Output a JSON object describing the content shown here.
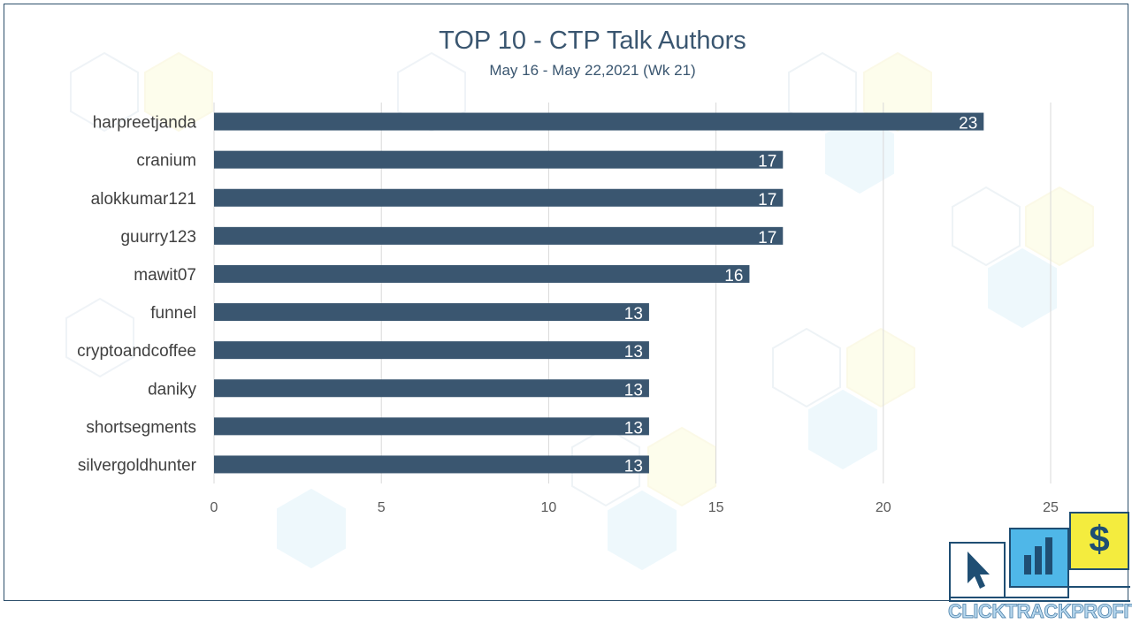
{
  "title": "TOP 10 - CTP Talk Authors",
  "subtitle": "May 16 - May 22,2021 (Wk 21)",
  "chart_data": {
    "type": "bar",
    "orientation": "horizontal",
    "title": "TOP 10 - CTP Talk Authors",
    "subtitle": "May 16 - May 22,2021 (Wk 21)",
    "categories": [
      "harpreetjanda",
      "cranium",
      "alokkumar121",
      "guurry123",
      "mawit07",
      "funnel",
      "cryptoandcoffee",
      "daniky",
      "shortsegments",
      "silvergoldhunter"
    ],
    "values": [
      23,
      17,
      17,
      17,
      16,
      13,
      13,
      13,
      13,
      13
    ],
    "xlim": [
      0,
      25
    ],
    "xticks": [
      0,
      5,
      10,
      15,
      20,
      25
    ],
    "grid": true,
    "legend": "none",
    "data_labels": true,
    "bar_color": "#3a5670",
    "label_color": "#ffffff"
  },
  "logo": {
    "text": "CLICKTRACKPROFIT",
    "icons": [
      "cursor-icon",
      "bar-chart-icon",
      "dollar-icon"
    ],
    "colors": {
      "dark": "#1f4e73",
      "blue": "#4fb7e8",
      "yellow": "#f4ec3e"
    }
  }
}
